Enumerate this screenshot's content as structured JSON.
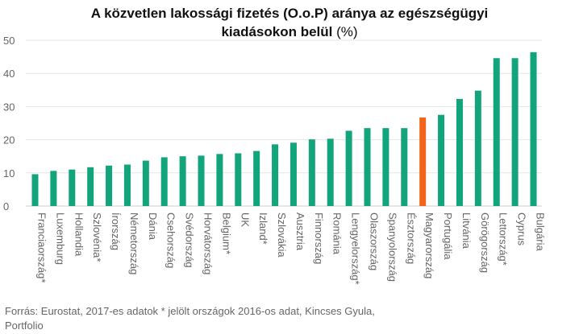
{
  "chart_data": {
    "type": "bar",
    "title_bold_1": "A közvetlen lakossági fizetés (O.o.P) aránya az egészségügyi",
    "title_bold_2": "kiadásokon belül",
    "title_suffix": " (%)",
    "categories": [
      "Franciaország*",
      "Luxemburg",
      "Hollandia",
      "Szlovénia*",
      "Írország",
      "Németország",
      "Dánia",
      "Csehország",
      "Svédország",
      "Horvátország",
      "Belgium*",
      "UK",
      "Izland*",
      "Szlovákia",
      "Ausztria",
      "Finnország",
      "Románia",
      "Lengyelország*",
      "Olaszország",
      "Spanyolország",
      "Észtország",
      "Magyarország",
      "Portugália",
      "Litvánia",
      "Görögország",
      "Lettország*",
      "Cyprus",
      "Bulgária"
    ],
    "values": [
      9.6,
      10.6,
      11.0,
      11.7,
      12.2,
      12.5,
      13.7,
      14.7,
      15.0,
      15.2,
      15.7,
      15.9,
      16.6,
      18.6,
      19.1,
      20.1,
      20.3,
      22.7,
      23.5,
      23.5,
      23.5,
      26.7,
      27.5,
      32.3,
      34.8,
      44.6,
      44.6,
      46.4
    ],
    "highlight_index": 21,
    "colors": {
      "bar": "#12a47b",
      "highlight": "#f26419",
      "grid": "#e6e6e6",
      "text": "#666666"
    },
    "yticks": [
      0,
      10,
      20,
      30,
      40,
      50
    ],
    "ylim": [
      0,
      52
    ],
    "grid": true
  },
  "source": {
    "line1": "Forrás: Eurostat, 2017-es adatok * jelölt országok 2016-os adat, Kincses Gyula,",
    "line2": "Portfolio"
  }
}
